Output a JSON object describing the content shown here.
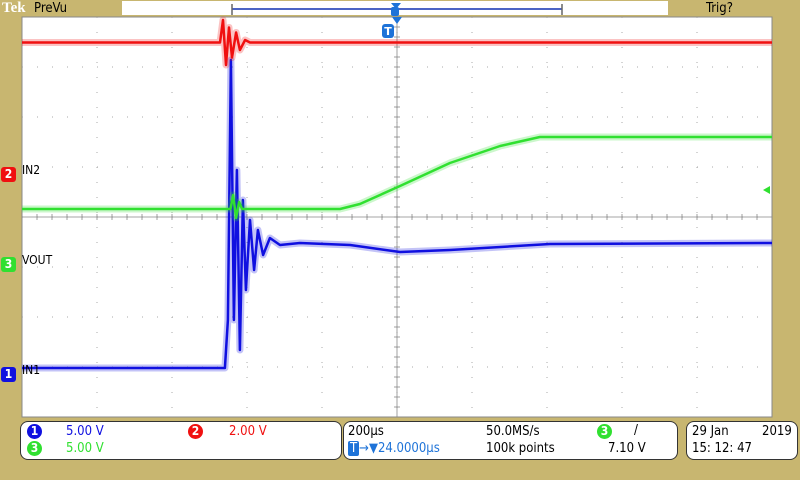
{
  "header": {
    "brand": "Tek",
    "mode": "PreVu",
    "trigger_status": "Trig?"
  },
  "colors": {
    "ch1": "#1010e0",
    "ch2": "#f01010",
    "ch3": "#30e030",
    "background": "#c8b670",
    "accent": "#1e73d8"
  },
  "channels": [
    {
      "id": "1",
      "label": "IN1",
      "scale": "5.00 V",
      "color": "#1010e0"
    },
    {
      "id": "2",
      "label": "IN2",
      "scale": "2.00 V",
      "color": "#f01010"
    },
    {
      "id": "3",
      "label": "VOUT",
      "scale": "5.00 V",
      "color": "#30e030"
    }
  ],
  "timebase": {
    "scale": "200µs",
    "delay": "24.0000µs",
    "sample_rate": "50.0MS/s",
    "record_length": "100k points"
  },
  "trigger": {
    "source": "3",
    "slope": "/",
    "level": "7.10 V",
    "marker": "T"
  },
  "datetime": {
    "date_day": "29 Jan",
    "year": "2019",
    "time": "15: 12: 47"
  },
  "chart_data": {
    "type": "line",
    "grid": true,
    "divisions": {
      "horizontal": 10,
      "vertical": 8
    },
    "xunit": "µs",
    "yunit": "V",
    "series": [
      {
        "name": "IN1",
        "channel": "1",
        "color": "#1010e0",
        "volts_per_div": 5,
        "points": [
          [
            -976,
            0.2
          ],
          [
            -435,
            0.2
          ],
          [
            -427,
            5
          ],
          [
            -419,
            31
          ],
          [
            -411,
            5
          ],
          [
            -403,
            20
          ],
          [
            -395,
            2
          ],
          [
            -387,
            17
          ],
          [
            -379,
            8
          ],
          [
            -368,
            15
          ],
          [
            -357,
            10
          ],
          [
            -347,
            14
          ],
          [
            -333,
            11.5
          ],
          [
            -315,
            13.2
          ],
          [
            -288,
            12.5
          ],
          [
            -235,
            12.7
          ],
          [
            -101,
            12.5
          ],
          [
            32,
            11.8
          ],
          [
            165,
            12.0
          ],
          [
            432,
            12.6
          ],
          [
            1024,
            12.7
          ]
        ]
      },
      {
        "name": "IN2",
        "channel": "2",
        "color": "#f01010",
        "volts_per_div": 2,
        "points": [
          [
            -976,
            5.1
          ],
          [
            -448,
            5.1
          ],
          [
            -440,
            6.0
          ],
          [
            -432,
            4.2
          ],
          [
            -424,
            5.7
          ],
          [
            -416,
            4.5
          ],
          [
            -405,
            5.5
          ],
          [
            -395,
            4.8
          ],
          [
            -381,
            5.2
          ],
          [
            -368,
            5.1
          ],
          [
            1024,
            5.1
          ]
        ]
      },
      {
        "name": "VOUT",
        "channel": "3",
        "color": "#30e030",
        "volts_per_div": 5,
        "points": [
          [
            -976,
            5.1
          ],
          [
            -420,
            5.1
          ],
          [
            -413,
            6.5
          ],
          [
            -405,
            4.2
          ],
          [
            -397,
            5.8
          ],
          [
            -389,
            5.1
          ],
          [
            -128,
            5.1
          ],
          [
            -75,
            5.6
          ],
          [
            32,
            7.4
          ],
          [
            165,
            9.7
          ],
          [
            299,
            11.4
          ],
          [
            405,
            12.3
          ],
          [
            1024,
            12.3
          ]
        ]
      }
    ]
  }
}
